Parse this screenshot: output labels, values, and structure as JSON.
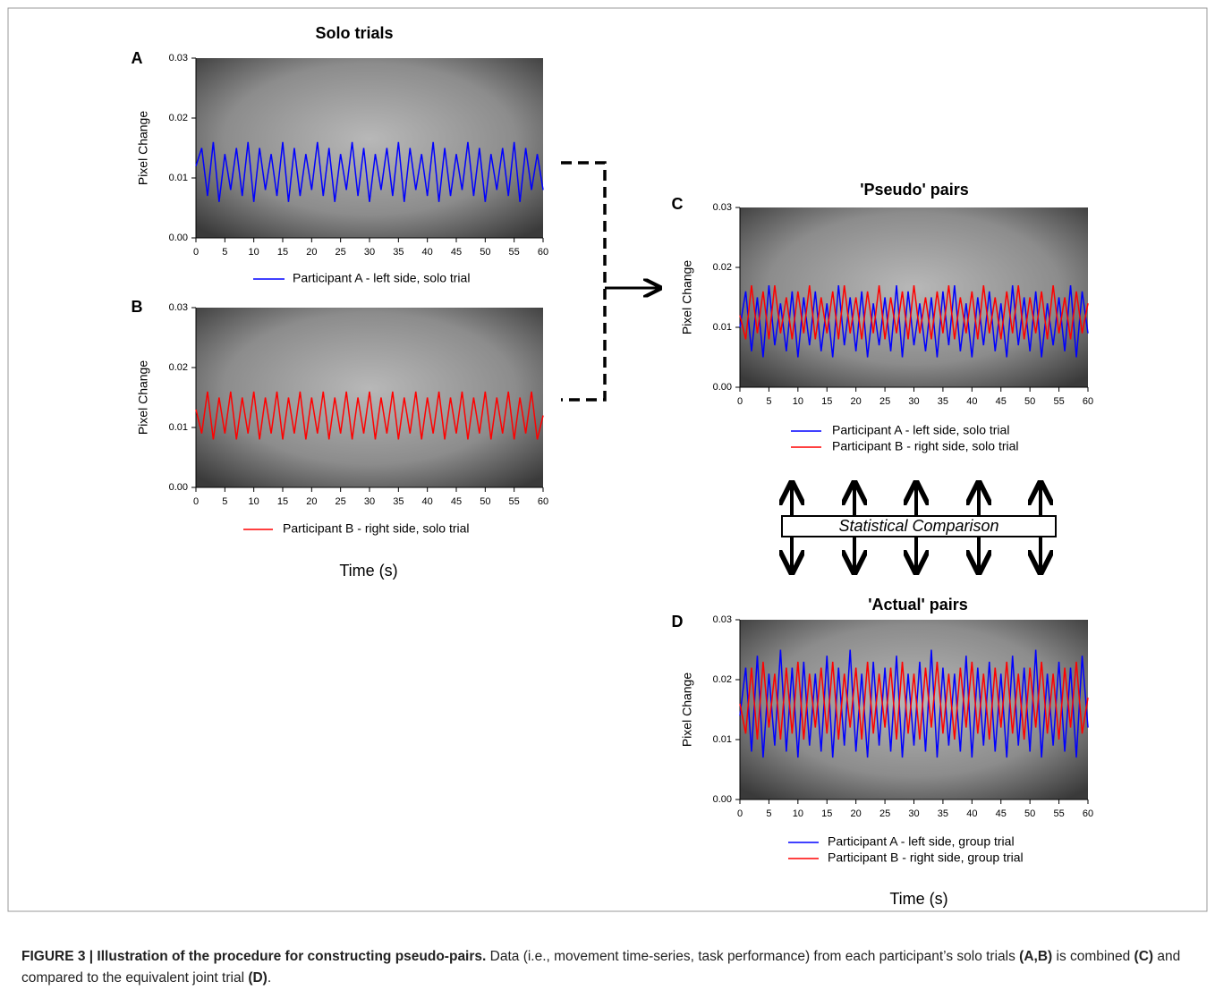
{
  "chart_data": [
    {
      "type": "line",
      "panel": "A",
      "title": "Solo trials",
      "ylabel": "Pixel Change",
      "xlim": [
        0,
        60
      ],
      "ylim": [
        0,
        0.03
      ],
      "xticks": [
        0,
        5,
        10,
        15,
        20,
        25,
        30,
        35,
        40,
        45,
        50,
        55,
        60
      ],
      "yticks": [
        {
          "value": 0,
          "label": "0.00"
        },
        {
          "value": 0.01,
          "label": "0.01"
        },
        {
          "value": 0.02,
          "label": "0.02"
        },
        {
          "value": 0.03,
          "label": "0.03"
        }
      ],
      "x": [
        0,
        1,
        2,
        3,
        4,
        5,
        6,
        7,
        8,
        9,
        10,
        11,
        12,
        13,
        14,
        15,
        16,
        17,
        18,
        19,
        20,
        21,
        22,
        23,
        24,
        25,
        26,
        27,
        28,
        29,
        30,
        31,
        32,
        33,
        34,
        35,
        36,
        37,
        38,
        39,
        40,
        41,
        42,
        43,
        44,
        45,
        46,
        47,
        48,
        49,
        50,
        51,
        52,
        53,
        54,
        55,
        56,
        57,
        58,
        59,
        60
      ],
      "series": [
        {
          "name": "Participant A - left side, solo trial",
          "color": "#0000ff",
          "values": [
            0.012,
            0.015,
            0.007,
            0.016,
            0.006,
            0.014,
            0.008,
            0.015,
            0.007,
            0.016,
            0.006,
            0.015,
            0.008,
            0.014,
            0.007,
            0.016,
            0.006,
            0.015,
            0.007,
            0.014,
            0.008,
            0.016,
            0.007,
            0.015,
            0.006,
            0.014,
            0.008,
            0.016,
            0.007,
            0.015,
            0.006,
            0.014,
            0.008,
            0.015,
            0.007,
            0.016,
            0.006,
            0.015,
            0.008,
            0.014,
            0.007,
            0.016,
            0.006,
            0.015,
            0.007,
            0.014,
            0.008,
            0.016,
            0.007,
            0.015,
            0.006,
            0.014,
            0.008,
            0.015,
            0.007,
            0.016,
            0.006,
            0.015,
            0.008,
            0.014,
            0.008
          ]
        }
      ]
    },
    {
      "type": "line",
      "panel": "B",
      "ylabel": "Pixel Change",
      "xlabel": "Time (s)",
      "xlim": [
        0,
        60
      ],
      "ylim": [
        0,
        0.03
      ],
      "xticks": [
        0,
        5,
        10,
        15,
        20,
        25,
        30,
        35,
        40,
        45,
        50,
        55,
        60
      ],
      "yticks": [
        {
          "value": 0,
          "label": "0.00"
        },
        {
          "value": 0.01,
          "label": "0.01"
        },
        {
          "value": 0.02,
          "label": "0.02"
        },
        {
          "value": 0.03,
          "label": "0.03"
        }
      ],
      "x": [
        0,
        1,
        2,
        3,
        4,
        5,
        6,
        7,
        8,
        9,
        10,
        11,
        12,
        13,
        14,
        15,
        16,
        17,
        18,
        19,
        20,
        21,
        22,
        23,
        24,
        25,
        26,
        27,
        28,
        29,
        30,
        31,
        32,
        33,
        34,
        35,
        36,
        37,
        38,
        39,
        40,
        41,
        42,
        43,
        44,
        45,
        46,
        47,
        48,
        49,
        50,
        51,
        52,
        53,
        54,
        55,
        56,
        57,
        58,
        59,
        60
      ],
      "series": [
        {
          "name": "Participant B - right side, solo trial",
          "color": "#ff0000",
          "values": [
            0.013,
            0.009,
            0.016,
            0.008,
            0.015,
            0.009,
            0.016,
            0.008,
            0.015,
            0.009,
            0.016,
            0.008,
            0.015,
            0.009,
            0.016,
            0.008,
            0.015,
            0.009,
            0.016,
            0.008,
            0.015,
            0.009,
            0.016,
            0.008,
            0.015,
            0.009,
            0.016,
            0.008,
            0.015,
            0.009,
            0.016,
            0.008,
            0.015,
            0.009,
            0.016,
            0.008,
            0.015,
            0.009,
            0.016,
            0.008,
            0.015,
            0.009,
            0.016,
            0.008,
            0.015,
            0.009,
            0.016,
            0.008,
            0.015,
            0.009,
            0.016,
            0.008,
            0.015,
            0.009,
            0.016,
            0.008,
            0.015,
            0.009,
            0.016,
            0.008,
            0.012
          ]
        }
      ]
    },
    {
      "type": "line",
      "panel": "C",
      "title": "'Pseudo' pairs",
      "ylabel": "Pixel Change",
      "xlim": [
        0,
        60
      ],
      "ylim": [
        0,
        0.03
      ],
      "xticks": [
        0,
        5,
        10,
        15,
        20,
        25,
        30,
        35,
        40,
        45,
        50,
        55,
        60
      ],
      "yticks": [
        {
          "value": 0,
          "label": "0.00"
        },
        {
          "value": 0.01,
          "label": "0.01"
        },
        {
          "value": 0.02,
          "label": "0.02"
        },
        {
          "value": 0.03,
          "label": "0.03"
        }
      ],
      "x": [
        0,
        1,
        2,
        3,
        4,
        5,
        6,
        7,
        8,
        9,
        10,
        11,
        12,
        13,
        14,
        15,
        16,
        17,
        18,
        19,
        20,
        21,
        22,
        23,
        24,
        25,
        26,
        27,
        28,
        29,
        30,
        31,
        32,
        33,
        34,
        35,
        36,
        37,
        38,
        39,
        40,
        41,
        42,
        43,
        44,
        45,
        46,
        47,
        48,
        49,
        50,
        51,
        52,
        53,
        54,
        55,
        56,
        57,
        58,
        59,
        60
      ],
      "series": [
        {
          "name": "Participant A - left side, solo trial",
          "color": "#0000ff",
          "values": [
            0.01,
            0.016,
            0.006,
            0.015,
            0.005,
            0.017,
            0.007,
            0.014,
            0.006,
            0.016,
            0.005,
            0.015,
            0.007,
            0.016,
            0.006,
            0.014,
            0.005,
            0.017,
            0.007,
            0.015,
            0.006,
            0.016,
            0.005,
            0.014,
            0.007,
            0.015,
            0.006,
            0.017,
            0.005,
            0.016,
            0.007,
            0.014,
            0.006,
            0.015,
            0.005,
            0.016,
            0.007,
            0.017,
            0.006,
            0.014,
            0.005,
            0.015,
            0.007,
            0.016,
            0.006,
            0.014,
            0.005,
            0.017,
            0.007,
            0.015,
            0.006,
            0.016,
            0.005,
            0.014,
            0.007,
            0.015,
            0.006,
            0.017,
            0.005,
            0.016,
            0.009
          ]
        },
        {
          "name": "Participant B - right side, solo trial",
          "color": "#ff0000",
          "values": [
            0.012,
            0.008,
            0.017,
            0.009,
            0.016,
            0.008,
            0.017,
            0.009,
            0.015,
            0.008,
            0.016,
            0.009,
            0.017,
            0.008,
            0.015,
            0.009,
            0.016,
            0.008,
            0.017,
            0.009,
            0.015,
            0.008,
            0.016,
            0.009,
            0.017,
            0.008,
            0.015,
            0.009,
            0.016,
            0.008,
            0.017,
            0.009,
            0.015,
            0.008,
            0.016,
            0.009,
            0.017,
            0.008,
            0.015,
            0.009,
            0.016,
            0.008,
            0.017,
            0.009,
            0.015,
            0.008,
            0.016,
            0.009,
            0.017,
            0.008,
            0.015,
            0.009,
            0.016,
            0.008,
            0.017,
            0.009,
            0.015,
            0.008,
            0.016,
            0.009,
            0.014
          ]
        }
      ]
    },
    {
      "type": "line",
      "panel": "D",
      "title": "'Actual' pairs",
      "ylabel": "Pixel Change",
      "xlabel": "Time (s)",
      "xlim": [
        0,
        60
      ],
      "ylim": [
        0,
        0.03
      ],
      "xticks": [
        0,
        5,
        10,
        15,
        20,
        25,
        30,
        35,
        40,
        45,
        50,
        55,
        60
      ],
      "yticks": [
        {
          "value": 0,
          "label": "0.00"
        },
        {
          "value": 0.01,
          "label": "0.01"
        },
        {
          "value": 0.02,
          "label": "0.02"
        },
        {
          "value": 0.03,
          "label": "0.03"
        }
      ],
      "x": [
        0,
        1,
        2,
        3,
        4,
        5,
        6,
        7,
        8,
        9,
        10,
        11,
        12,
        13,
        14,
        15,
        16,
        17,
        18,
        19,
        20,
        21,
        22,
        23,
        24,
        25,
        26,
        27,
        28,
        29,
        30,
        31,
        32,
        33,
        34,
        35,
        36,
        37,
        38,
        39,
        40,
        41,
        42,
        43,
        44,
        45,
        46,
        47,
        48,
        49,
        50,
        51,
        52,
        53,
        54,
        55,
        56,
        57,
        58,
        59,
        60
      ],
      "series": [
        {
          "name": "Participant A - left side, group trial",
          "color": "#0000ff",
          "values": [
            0.014,
            0.022,
            0.008,
            0.024,
            0.007,
            0.021,
            0.009,
            0.025,
            0.008,
            0.022,
            0.007,
            0.023,
            0.009,
            0.021,
            0.008,
            0.024,
            0.007,
            0.022,
            0.009,
            0.025,
            0.008,
            0.021,
            0.007,
            0.023,
            0.009,
            0.022,
            0.008,
            0.024,
            0.007,
            0.021,
            0.009,
            0.023,
            0.008,
            0.025,
            0.007,
            0.022,
            0.009,
            0.021,
            0.008,
            0.024,
            0.007,
            0.022,
            0.009,
            0.023,
            0.008,
            0.021,
            0.007,
            0.024,
            0.009,
            0.022,
            0.008,
            0.025,
            0.007,
            0.021,
            0.009,
            0.023,
            0.008,
            0.022,
            0.007,
            0.024,
            0.012
          ]
        },
        {
          "name": "Participant B - right side, group trial",
          "color": "#ff0000",
          "values": [
            0.016,
            0.011,
            0.022,
            0.01,
            0.023,
            0.012,
            0.021,
            0.01,
            0.022,
            0.011,
            0.023,
            0.01,
            0.021,
            0.012,
            0.022,
            0.011,
            0.023,
            0.01,
            0.021,
            0.012,
            0.022,
            0.01,
            0.023,
            0.011,
            0.021,
            0.012,
            0.022,
            0.01,
            0.023,
            0.011,
            0.021,
            0.01,
            0.022,
            0.012,
            0.023,
            0.011,
            0.021,
            0.01,
            0.022,
            0.012,
            0.023,
            0.011,
            0.021,
            0.01,
            0.022,
            0.012,
            0.023,
            0.011,
            0.021,
            0.01,
            0.022,
            0.012,
            0.023,
            0.011,
            0.021,
            0.01,
            0.022,
            0.012,
            0.023,
            0.011,
            0.017
          ]
        }
      ]
    }
  ],
  "diagram": {
    "comparison_label": "Statistical Comparison"
  },
  "caption": [
    "FIGURE 3 | Illustration of the procedure for constructing pseudo-pairs.",
    "Data (i.e., movement time-series, task performance) from each participant’s solo trials",
    "(A,B)",
    "is combined",
    "(C)",
    "and compared to the equivalent joint trial",
    "(D)",
    "."
  ]
}
